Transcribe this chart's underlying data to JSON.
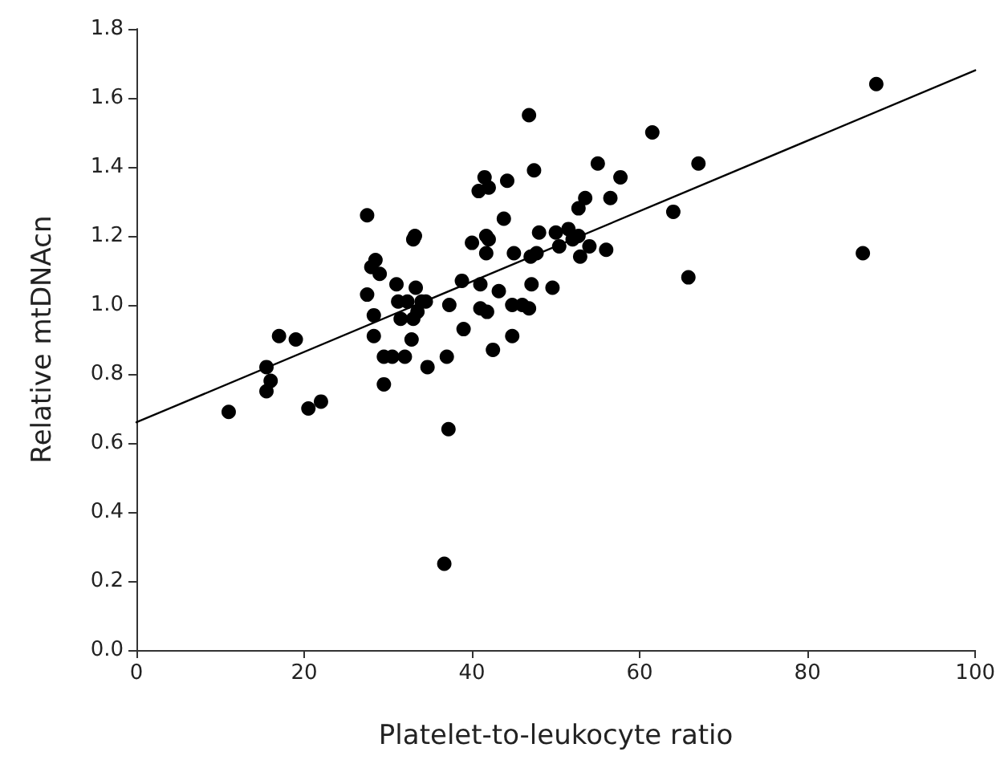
{
  "chart_data": {
    "type": "scatter",
    "xlabel": "Platelet-to-leukocyte ratio",
    "ylabel": "Relative mtDNAcn",
    "xlim": [
      0,
      100
    ],
    "xticks": [
      0,
      20,
      40,
      60,
      80,
      100
    ],
    "ylim": [
      0,
      1.8
    ],
    "yticks": [
      {
        "value": 0,
        "label": "0.0"
      },
      0.2,
      0.4,
      0.6,
      0.8,
      {
        "value": 1,
        "label": "1.0"
      },
      1.2,
      1.4,
      1.6,
      1.8
    ],
    "grid": false,
    "marker": "circle",
    "series": [
      {
        "color": "#000000",
        "x": [
          11,
          15.5,
          15.5,
          16,
          17,
          19,
          20.5,
          22,
          27.5,
          27.5,
          28,
          28.5,
          28.3,
          28.3,
          29,
          29.5,
          29.5,
          30.5,
          31,
          31.2,
          31.5,
          32,
          32.3,
          32.8,
          33,
          33.2,
          33,
          33.3,
          33.5,
          34,
          34.5,
          34.7,
          37,
          37.3,
          37.2,
          36.7,
          38.8,
          39,
          40,
          40.8,
          41,
          41,
          41.5,
          41.7,
          41.7,
          41.8,
          42,
          42,
          42.5,
          43.2,
          43.8,
          44.2,
          44.8,
          44.8,
          45,
          46,
          46.8,
          46.8,
          47,
          47.1,
          47.4,
          47.7,
          48,
          49.6,
          50,
          50.4,
          51.5,
          52,
          52.7,
          52.7,
          52.9,
          53.5,
          54,
          55,
          56,
          56.5,
          57.7,
          61.5,
          64,
          65.8,
          67,
          86.6,
          88.2
        ],
        "values": [
          0.69,
          0.82,
          0.75,
          0.78,
          0.91,
          0.9,
          0.7,
          0.72,
          1.26,
          1.03,
          1.11,
          1.13,
          0.97,
          0.91,
          1.09,
          0.85,
          0.77,
          0.85,
          1.06,
          1.01,
          0.96,
          0.85,
          1.01,
          0.9,
          1.19,
          1.2,
          0.96,
          1.05,
          0.98,
          1.01,
          1.01,
          0.82,
          0.85,
          1.0,
          0.64,
          0.25,
          1.07,
          0.93,
          1.18,
          1.33,
          1.06,
          0.99,
          1.37,
          1.2,
          1.15,
          0.98,
          1.19,
          1.34,
          0.87,
          1.04,
          1.25,
          1.36,
          1.0,
          0.91,
          1.15,
          1.0,
          0.99,
          1.55,
          1.14,
          1.06,
          1.39,
          1.15,
          1.21,
          1.05,
          1.21,
          1.17,
          1.22,
          1.19,
          1.2,
          1.28,
          1.14,
          1.31,
          1.17,
          1.41,
          1.16,
          1.31,
          1.37,
          1.5,
          1.27,
          1.08,
          1.41,
          1.15,
          1.64
        ]
      },
      {
        "type": "line",
        "color": "#000000",
        "x": [
          0,
          100
        ],
        "values": [
          0.66,
          1.68
        ],
        "marker": "none",
        "line_style": "solid"
      }
    ]
  }
}
